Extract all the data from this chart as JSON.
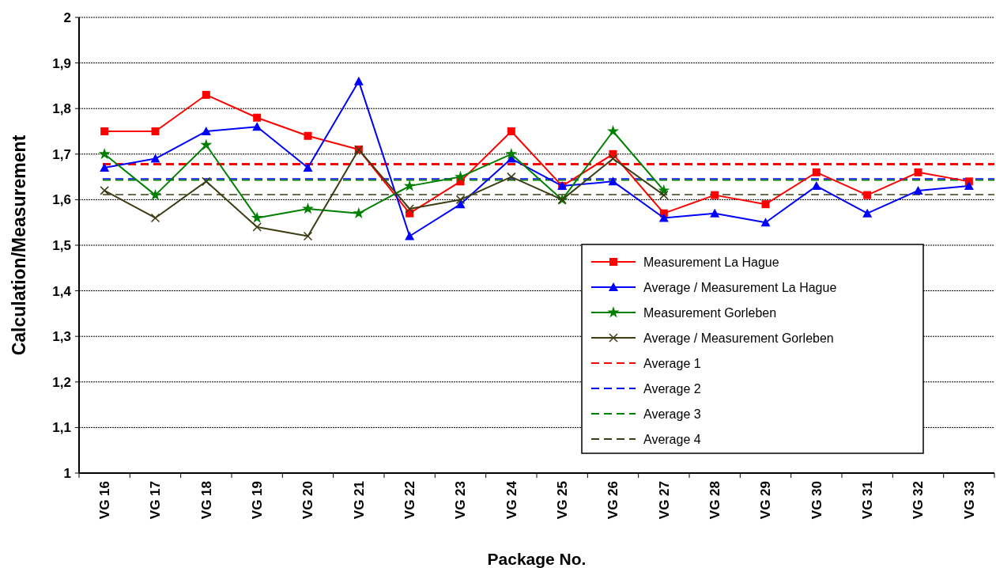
{
  "chart_data": {
    "type": "line",
    "xlabel": "Package No.",
    "ylabel": "Calculation/Measurement",
    "categories": [
      "VG 16",
      "VG 17",
      "VG 18",
      "VG 19",
      "VG 20",
      "VG 21",
      "VG 22",
      "VG 23",
      "VG 24",
      "VG 25",
      "VG 26",
      "VG 27",
      "VG 28",
      "VG 29",
      "VG 30",
      "VG 31",
      "VG 32",
      "VG 33"
    ],
    "ylim": [
      1,
      2
    ],
    "yticks": [
      1,
      {
        "value": 1.1,
        "label": "1,1"
      },
      {
        "value": 1.2,
        "label": "1,2"
      },
      {
        "value": 1.3,
        "label": "1,3"
      },
      {
        "value": 1.4,
        "label": "1,4"
      },
      {
        "value": 1.5,
        "label": "1,5"
      },
      {
        "value": 1.6,
        "label": "1,6"
      },
      {
        "value": 1.7,
        "label": "1,7"
      },
      {
        "value": 1.8,
        "label": "1,8"
      },
      {
        "value": 1.9,
        "label": "1,9"
      },
      2
    ],
    "grid": "y",
    "legend": "bottom right",
    "series": [
      {
        "name": "Measurement La Hague",
        "color": "#ff0000",
        "marker": "square",
        "values": [
          1.75,
          1.75,
          1.83,
          1.78,
          1.74,
          1.71,
          1.57,
          1.64,
          1.75,
          1.63,
          1.7,
          1.57,
          1.61,
          1.59,
          1.66,
          1.61,
          1.66,
          1.64
        ]
      },
      {
        "name": "Average / Measurement La Hague",
        "color": "#0000ff",
        "marker": "triangle",
        "values": [
          1.67,
          1.69,
          1.75,
          1.76,
          1.67,
          1.86,
          1.52,
          1.59,
          1.69,
          1.63,
          1.64,
          1.56,
          1.57,
          1.55,
          1.63,
          1.57,
          1.62,
          1.63
        ]
      },
      {
        "name": "Measurement Gorleben",
        "color": "#008000",
        "marker": "star",
        "values": [
          1.7,
          1.61,
          1.72,
          1.56,
          1.58,
          1.57,
          1.63,
          1.65,
          1.7,
          1.6,
          1.75,
          1.62,
          null,
          null,
          null,
          null,
          null,
          null
        ]
      },
      {
        "name": "Average / Measurement Gorleben",
        "color": "#3d3d14",
        "marker": "cross",
        "values": [
          1.62,
          1.56,
          1.64,
          1.54,
          1.52,
          1.71,
          1.58,
          1.6,
          1.65,
          1.6,
          1.69,
          1.61,
          null,
          null,
          null,
          null,
          null,
          null
        ]
      }
    ],
    "ref_lines": [
      {
        "axis": "y",
        "value": 1.678,
        "label": "Average 1",
        "color": "#ff0000",
        "line_style": "dashed"
      },
      {
        "axis": "y",
        "value": 1.646,
        "label": "Average 2",
        "color": "#0000ff",
        "line_style": "dashed"
      },
      {
        "axis": "y",
        "value": 1.643,
        "label": "Average 3",
        "color": "#008000",
        "line_style": "dashed"
      },
      {
        "axis": "y",
        "value": 1.611,
        "label": "Average 4",
        "color": "#3d3d14",
        "line_style": "dashed"
      }
    ]
  }
}
